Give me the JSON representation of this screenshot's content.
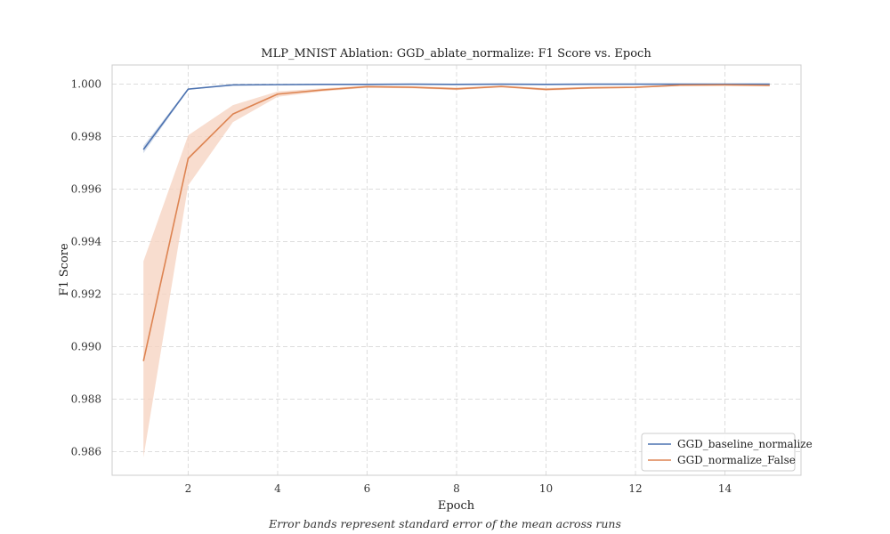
{
  "chart_data": {
    "type": "line",
    "title": "MLP_MNIST Ablation: GGD_ablate_normalize: F1 Score vs. Epoch",
    "xlabel": "Epoch",
    "ylabel": "F1 Score",
    "xlim": [
      0.3,
      15.7
    ],
    "ylim": [
      0.9851,
      1.00073
    ],
    "xticks": [
      2,
      4,
      6,
      8,
      10,
      12,
      14
    ],
    "yticks": [
      0.986,
      0.988,
      0.99,
      0.992,
      0.994,
      0.996,
      0.998,
      1.0
    ],
    "ytick_labels": [
      "0.986",
      "0.988",
      "0.990",
      "0.992",
      "0.994",
      "0.996",
      "0.998",
      "1.000"
    ],
    "grid": true,
    "legend_position": "lower-right",
    "x": [
      1,
      2,
      3,
      4,
      5,
      6,
      7,
      8,
      9,
      10,
      11,
      12,
      13,
      14,
      15
    ],
    "series": [
      {
        "name": "GGD_baseline_normalize",
        "color": "#4c72b0",
        "values": [
          0.99751,
          0.99981,
          0.99997,
          0.99998,
          0.99999,
          0.99999,
          1.0,
          0.99999,
          1.0,
          0.99999,
          1.0,
          1.0,
          1.0,
          1.0,
          1.0
        ],
        "lower": [
          0.99737,
          0.99978,
          0.99996,
          0.99997,
          0.99998,
          0.99999,
          0.99999,
          0.99999,
          0.99999,
          0.99999,
          0.99999,
          0.99999,
          0.99999,
          0.99999,
          0.99999
        ],
        "upper": [
          0.99765,
          0.99984,
          0.99998,
          0.99999,
          1.0,
          1.0,
          1.0,
          1.0,
          1.0,
          1.0,
          1.0,
          1.0,
          1.0,
          1.0,
          1.0
        ]
      },
      {
        "name": "GGD_normalize_False",
        "color": "#dd8452",
        "band_color": "#f6d5c3",
        "values": [
          0.98945,
          0.99717,
          0.99886,
          0.99962,
          0.99978,
          0.9999,
          0.99988,
          0.99982,
          0.99991,
          0.9998,
          0.99986,
          0.99988,
          0.99996,
          0.99997,
          0.99995
        ],
        "lower": [
          0.98578,
          0.99614,
          0.99855,
          0.99952,
          0.99972,
          0.99986,
          0.99984,
          0.99977,
          0.99988,
          0.99975,
          0.99982,
          0.99985,
          0.99994,
          0.99995,
          0.99993
        ],
        "upper": [
          0.99325,
          0.99805,
          0.9992,
          0.99972,
          0.99984,
          0.99994,
          0.99992,
          0.99987,
          0.99994,
          0.99985,
          0.9999,
          0.99991,
          0.99998,
          0.99999,
          0.99997
        ]
      }
    ]
  },
  "caption": "Error bands represent standard error of the mean across runs"
}
